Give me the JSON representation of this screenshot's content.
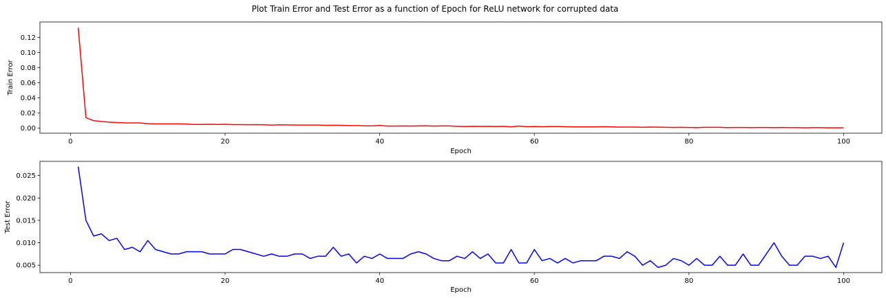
{
  "figure": {
    "suptitle": "Plot Train Error and Test Error as a function of Epoch for ReLU network for corrupted data"
  },
  "colors": {
    "train": "#ff0000",
    "test": "#0000ff"
  },
  "chart_data": [
    {
      "type": "line",
      "xlabel": "Epoch",
      "ylabel": "Train Error",
      "xlim": [
        -3.95,
        104.95
      ],
      "ylim": [
        -0.0066,
        0.1404
      ],
      "xticks": [
        0,
        20,
        40,
        60,
        80,
        100
      ],
      "xtick_labels": [
        "0",
        "20",
        "40",
        "60",
        "80",
        "100"
      ],
      "yticks": [
        0.0,
        0.02,
        0.04,
        0.06,
        0.08,
        0.1,
        0.12
      ],
      "ytick_labels": [
        "0.00",
        "0.02",
        "0.04",
        "0.06",
        "0.08",
        "0.10",
        "0.12"
      ],
      "grid": false,
      "series": [
        {
          "color": "#ff0000",
          "x": [
            1,
            2,
            3,
            4,
            5,
            6,
            7,
            8,
            9,
            10,
            11,
            12,
            13,
            14,
            15,
            16,
            17,
            18,
            19,
            20,
            21,
            22,
            23,
            24,
            25,
            26,
            27,
            28,
            29,
            30,
            31,
            32,
            33,
            34,
            35,
            36,
            37,
            38,
            39,
            40,
            41,
            42,
            43,
            44,
            45,
            46,
            47,
            48,
            49,
            50,
            51,
            52,
            53,
            54,
            55,
            56,
            57,
            58,
            59,
            60,
            61,
            62,
            63,
            64,
            65,
            66,
            67,
            68,
            69,
            70,
            71,
            72,
            73,
            74,
            75,
            76,
            77,
            78,
            79,
            80,
            81,
            82,
            83,
            84,
            85,
            86,
            87,
            88,
            89,
            90,
            91,
            92,
            93,
            94,
            95,
            96,
            97,
            98,
            99,
            100
          ],
          "y": [
            0.133,
            0.014,
            0.01,
            0.009,
            0.008,
            0.0075,
            0.007,
            0.007,
            0.007,
            0.006,
            0.0058,
            0.0058,
            0.0058,
            0.0058,
            0.0055,
            0.005,
            0.005,
            0.0052,
            0.005,
            0.0052,
            0.0048,
            0.0048,
            0.0046,
            0.0048,
            0.0045,
            0.0042,
            0.0045,
            0.0044,
            0.0042,
            0.0042,
            0.0042,
            0.0042,
            0.0038,
            0.004,
            0.0038,
            0.0035,
            0.0035,
            0.0032,
            0.003,
            0.0036,
            0.0028,
            0.0028,
            0.003,
            0.0028,
            0.003,
            0.0032,
            0.0028,
            0.003,
            0.003,
            0.0025,
            0.0022,
            0.0025,
            0.0024,
            0.0025,
            0.0022,
            0.0025,
            0.0018,
            0.0028,
            0.002,
            0.0022,
            0.002,
            0.0022,
            0.0022,
            0.002,
            0.0018,
            0.0018,
            0.0018,
            0.0018,
            0.002,
            0.0018,
            0.0015,
            0.0016,
            0.0016,
            0.0012,
            0.0016,
            0.0015,
            0.0012,
            0.001,
            0.0012,
            0.001,
            0.0008,
            0.0012,
            0.0012,
            0.0012,
            0.0008,
            0.001,
            0.001,
            0.0008,
            0.001,
            0.001,
            0.0008,
            0.001,
            0.0008,
            0.0008,
            0.0006,
            0.0008,
            0.0008,
            0.0006,
            0.0006,
            0.0005
          ]
        }
      ]
    },
    {
      "type": "line",
      "xlabel": "Epoch",
      "ylabel": "Test Error",
      "xlim": [
        -3.95,
        104.95
      ],
      "ylim": [
        0.00335,
        0.02816
      ],
      "xticks": [
        0,
        20,
        40,
        60,
        80,
        100
      ],
      "xtick_labels": [
        "0",
        "20",
        "40",
        "60",
        "80",
        "100"
      ],
      "yticks": [
        0.005,
        0.01,
        0.015,
        0.02,
        0.025
      ],
      "ytick_labels": [
        "0.005",
        "0.010",
        "0.015",
        "0.020",
        "0.025"
      ],
      "grid": false,
      "series": [
        {
          "color": "#0000ff",
          "x": [
            1,
            2,
            3,
            4,
            5,
            6,
            7,
            8,
            9,
            10,
            11,
            12,
            13,
            14,
            15,
            16,
            17,
            18,
            19,
            20,
            21,
            22,
            23,
            24,
            25,
            26,
            27,
            28,
            29,
            30,
            31,
            32,
            33,
            34,
            35,
            36,
            37,
            38,
            39,
            40,
            41,
            42,
            43,
            44,
            45,
            46,
            47,
            48,
            49,
            50,
            51,
            52,
            53,
            54,
            55,
            56,
            57,
            58,
            59,
            60,
            61,
            62,
            63,
            64,
            65,
            66,
            67,
            68,
            69,
            70,
            71,
            72,
            73,
            74,
            75,
            76,
            77,
            78,
            79,
            80,
            81,
            82,
            83,
            84,
            85,
            86,
            87,
            88,
            89,
            90,
            91,
            92,
            93,
            94,
            95,
            96,
            97,
            98,
            99,
            100
          ],
          "y": [
            0.027,
            0.015,
            0.0115,
            0.012,
            0.0105,
            0.011,
            0.0085,
            0.009,
            0.008,
            0.0105,
            0.0085,
            0.008,
            0.0075,
            0.0075,
            0.008,
            0.008,
            0.008,
            0.0075,
            0.0075,
            0.0075,
            0.0085,
            0.0085,
            0.008,
            0.0075,
            0.007,
            0.0075,
            0.007,
            0.007,
            0.0075,
            0.0075,
            0.0065,
            0.007,
            0.007,
            0.009,
            0.007,
            0.0075,
            0.0055,
            0.007,
            0.0065,
            0.0075,
            0.0065,
            0.0065,
            0.0065,
            0.0075,
            0.008,
            0.0075,
            0.0065,
            0.006,
            0.006,
            0.007,
            0.0065,
            0.008,
            0.0065,
            0.0075,
            0.0055,
            0.0055,
            0.0085,
            0.0055,
            0.0055,
            0.0085,
            0.006,
            0.0065,
            0.0055,
            0.0065,
            0.0055,
            0.006,
            0.006,
            0.006,
            0.007,
            0.007,
            0.0065,
            0.008,
            0.007,
            0.005,
            0.006,
            0.0045,
            0.005,
            0.0065,
            0.006,
            0.005,
            0.0065,
            0.005,
            0.005,
            0.007,
            0.005,
            0.005,
            0.0075,
            0.005,
            0.005,
            0.0075,
            0.01,
            0.007,
            0.005,
            0.005,
            0.007,
            0.007,
            0.0065,
            0.007,
            0.0045,
            0.01
          ]
        }
      ]
    }
  ]
}
